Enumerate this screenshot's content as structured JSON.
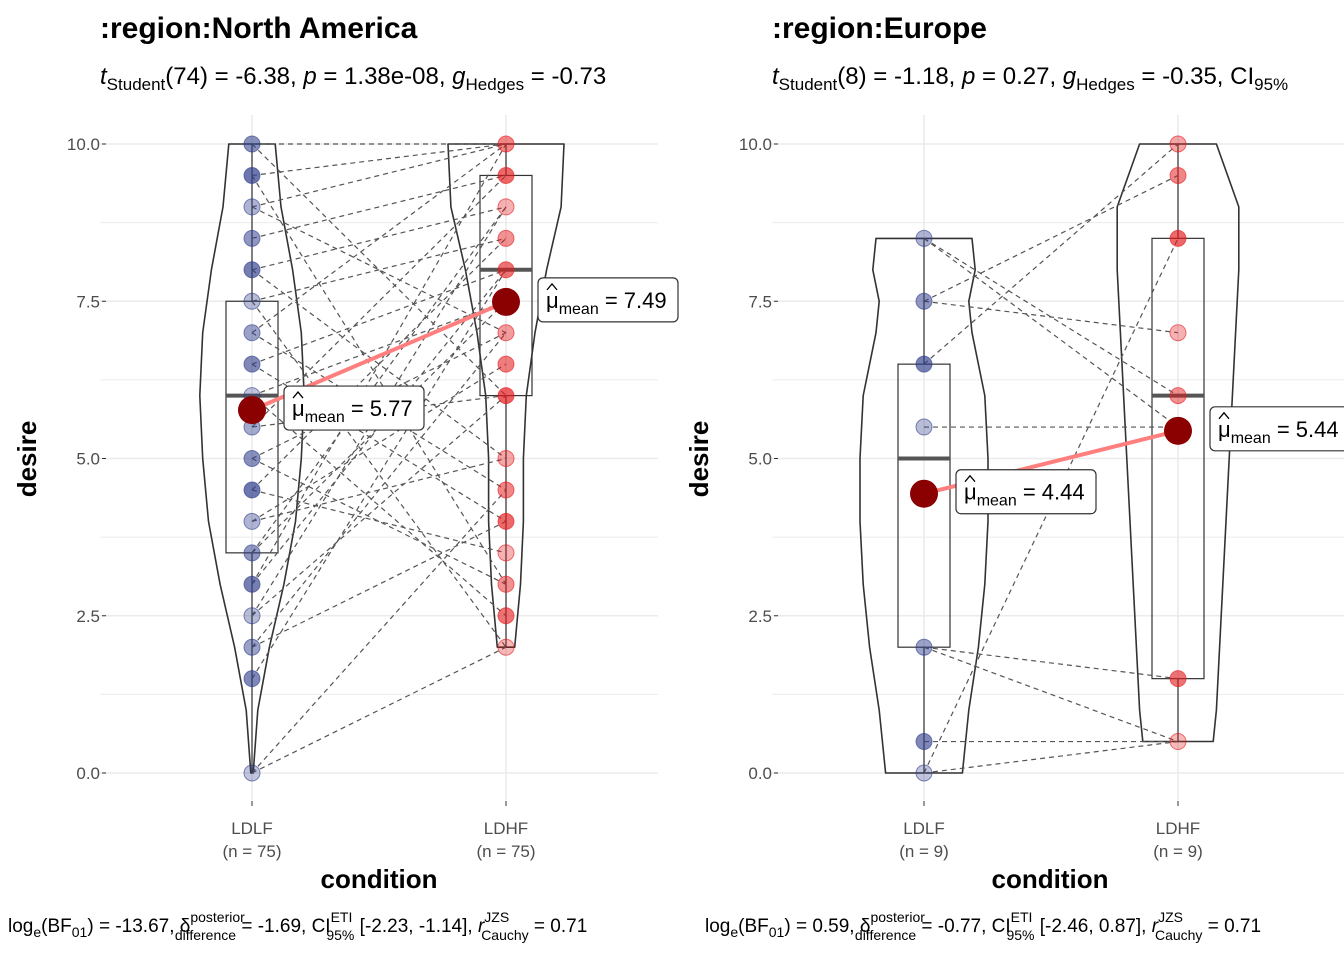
{
  "chart_data": [
    {
      "type": "violin-box-paired",
      "title": ":region:North America",
      "subtitle": {
        "stat_name": "Student",
        "df": "(74)",
        "t_value": "-6.38",
        "p_text": "1.38e-08",
        "effect_name": "Hedges",
        "effect_value": "-0.73"
      },
      "xlabel": "condition",
      "ylabel": "desire",
      "ylim": [
        -0.5,
        10.5
      ],
      "yticks": [
        0.0,
        2.5,
        5.0,
        7.5,
        10.0
      ],
      "ytick_labels": [
        "0.0",
        "2.5",
        "5.0",
        "7.5",
        "10.0"
      ],
      "grid": true,
      "categories": [
        {
          "label": "LDLF",
          "n_label": "(n = 75)",
          "color": "#2E3D8A"
        },
        {
          "label": "LDHF",
          "n_label": "(n = 75)",
          "color": "#E41A1C"
        }
      ],
      "points": [
        [
          0,
          1.5,
          2,
          2.5,
          3,
          3.5,
          4,
          4.5,
          5,
          5.5,
          6,
          6.5,
          7,
          7.5,
          8,
          8.5,
          9,
          9.5,
          10
        ],
        [
          2,
          2.5,
          3,
          3.5,
          4,
          4.5,
          5,
          6,
          6.5,
          7,
          7.5,
          8,
          8.5,
          9,
          9.5,
          10
        ]
      ],
      "box": [
        {
          "q1": 3.5,
          "median": 6.0,
          "q3": 7.5,
          "min": 0,
          "max": 10
        },
        {
          "q1": 6.0,
          "median": 8.0,
          "q3": 9.5,
          "min": 2,
          "max": 10
        }
      ],
      "violin_shape": [
        [
          [
            0,
            0.02
          ],
          [
            1,
            0.1
          ],
          [
            2,
            0.3
          ],
          [
            3,
            0.55
          ],
          [
            4,
            0.75
          ],
          [
            5,
            0.85
          ],
          [
            6,
            0.9
          ],
          [
            7,
            0.85
          ],
          [
            8,
            0.7
          ],
          [
            9,
            0.5
          ],
          [
            10,
            0.4
          ]
        ],
        [
          [
            2,
            0.15
          ],
          [
            3,
            0.25
          ],
          [
            4,
            0.3
          ],
          [
            5,
            0.3
          ],
          [
            6,
            0.35
          ],
          [
            7,
            0.5
          ],
          [
            8,
            0.7
          ],
          [
            9,
            0.95
          ],
          [
            10,
            1.0
          ]
        ]
      ],
      "paired_links": [
        [
          10,
          10
        ],
        [
          9.5,
          10
        ],
        [
          9,
          10
        ],
        [
          8.5,
          9.5
        ],
        [
          8,
          9
        ],
        [
          7.5,
          8.5
        ],
        [
          7,
          10
        ],
        [
          6.5,
          8
        ],
        [
          6,
          7.5
        ],
        [
          5.5,
          9.5
        ],
        [
          5,
          7
        ],
        [
          4.5,
          8.5
        ],
        [
          4,
          6.5
        ],
        [
          3.5,
          9
        ],
        [
          3,
          10
        ],
        [
          2.5,
          6
        ],
        [
          2,
          4
        ],
        [
          1.5,
          8
        ],
        [
          0,
          2
        ],
        [
          9.5,
          3
        ],
        [
          8,
          5
        ],
        [
          7,
          4.5
        ],
        [
          6,
          2.5
        ],
        [
          5,
          3
        ],
        [
          4,
          5
        ],
        [
          3,
          8
        ],
        [
          2,
          7
        ],
        [
          10,
          6
        ],
        [
          7.5,
          2
        ],
        [
          3.5,
          7.5
        ],
        [
          6.5,
          4
        ],
        [
          5.5,
          6
        ],
        [
          9,
          7
        ],
        [
          4.5,
          3.5
        ],
        [
          2.5,
          9
        ],
        [
          0,
          4.5
        ]
      ],
      "means": [
        {
          "value": 5.77,
          "label_value": "5.77"
        },
        {
          "value": 7.49,
          "label_value": "7.49"
        }
      ],
      "mean_label_sub": "mean",
      "caption": {
        "bf_value": "-13.67",
        "delta_sup": "posterior",
        "delta_sub": "difference",
        "delta_value": "-1.69",
        "ci_sup": "ETI",
        "ci_sub": "95%",
        "ci_text": "[-2.23, -1.14]",
        "r_sup": "JZS",
        "r_sub": "Cauchy",
        "r_value": "0.71"
      }
    },
    {
      "type": "violin-box-paired",
      "title": ":region:Europe",
      "subtitle": {
        "stat_name": "Student",
        "df": "(8)",
        "t_value": "-1.18",
        "p_text": "0.27",
        "effect_name": "Hedges",
        "effect_value": "-0.35",
        "ci_text": "CI",
        "ci_sub": "95%"
      },
      "xlabel": "condition",
      "ylabel": "desire",
      "ylim": [
        -0.5,
        10.5
      ],
      "yticks": [
        0.0,
        2.5,
        5.0,
        7.5,
        10.0
      ],
      "ytick_labels": [
        "0.0",
        "2.5",
        "5.0",
        "7.5",
        "10.0"
      ],
      "grid": true,
      "categories": [
        {
          "label": "LDLF",
          "n_label": "(n = 9)",
          "color": "#2E3D8A"
        },
        {
          "label": "LDHF",
          "n_label": "(n = 9)",
          "color": "#E41A1C"
        }
      ],
      "points": [
        [
          0,
          0.5,
          2,
          5.5,
          6.5,
          7.5,
          8.5
        ],
        [
          0.5,
          1.5,
          6,
          7,
          8.5,
          9.5,
          10
        ]
      ],
      "box": [
        {
          "q1": 2.0,
          "median": 5.0,
          "q3": 6.5,
          "min": 0,
          "max": 8.5
        },
        {
          "q1": 1.5,
          "median": 6.0,
          "q3": 8.5,
          "min": 0.5,
          "max": 10
        }
      ],
      "violin_shape": [
        [
          [
            0,
            0.6
          ],
          [
            1,
            0.7
          ],
          [
            2,
            0.85
          ],
          [
            3,
            0.95
          ],
          [
            4,
            1.0
          ],
          [
            5,
            1.0
          ],
          [
            6,
            0.95
          ],
          [
            7,
            0.75
          ],
          [
            7.5,
            0.7
          ],
          [
            8,
            0.8
          ],
          [
            8.5,
            0.75
          ]
        ],
        [
          [
            0.5,
            0.55
          ],
          [
            1,
            0.6
          ],
          [
            2,
            0.65
          ],
          [
            3,
            0.7
          ],
          [
            4,
            0.75
          ],
          [
            5,
            0.8
          ],
          [
            6,
            0.85
          ],
          [
            7,
            0.9
          ],
          [
            8,
            0.95
          ],
          [
            9,
            0.95
          ],
          [
            10,
            0.6
          ]
        ]
      ],
      "paired_links": [
        [
          0,
          0.5
        ],
        [
          0.5,
          0.5
        ],
        [
          2,
          0.5
        ],
        [
          5.5,
          5.5
        ],
        [
          6.5,
          10
        ],
        [
          7.5,
          7
        ],
        [
          8.5,
          6
        ],
        [
          7.5,
          9.5
        ],
        [
          2,
          1.5
        ],
        [
          0,
          8.5
        ],
        [
          8.5,
          5.5
        ]
      ],
      "means": [
        {
          "value": 4.44,
          "label_value": "4.44"
        },
        {
          "value": 5.44,
          "label_value": "5.44"
        }
      ],
      "mean_label_sub": "mean",
      "caption": {
        "bf_value": "0.59",
        "delta_sup": "posterior",
        "delta_sub": "difference",
        "delta_value": "-0.77",
        "ci_sup": "ETI",
        "ci_sub": "95%",
        "ci_text": "[-2.46, 0.87]",
        "r_sup": "JZS",
        "r_sub": "Cauchy",
        "r_value": "0.71"
      }
    }
  ],
  "colors": {
    "group1": "#2E3D8A",
    "group2": "#E41A1C",
    "mean_point": "#8B0000",
    "mean_line": "#FF7F7F",
    "grid": "#EBEBEB"
  }
}
